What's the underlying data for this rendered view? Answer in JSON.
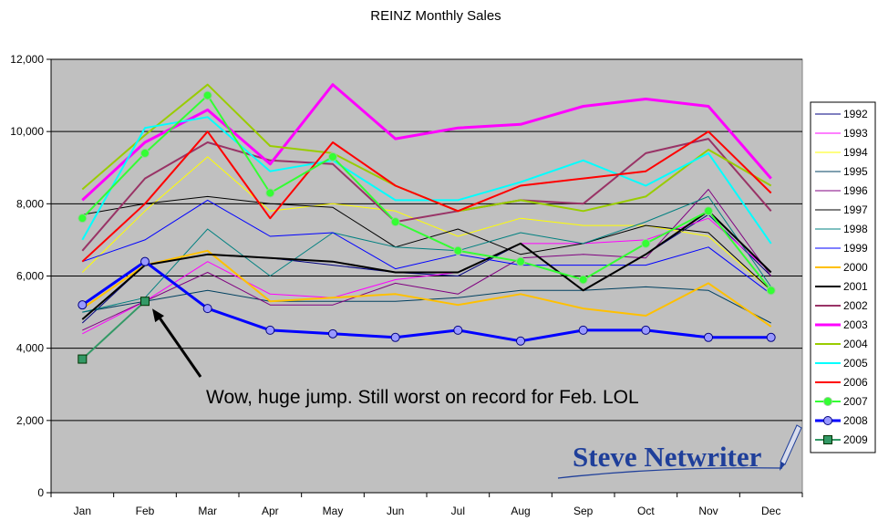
{
  "chart_data": {
    "type": "line",
    "title": "REINZ Monthly Sales",
    "xlabel": "",
    "ylabel": "",
    "categories": [
      "Jan",
      "Feb",
      "Mar",
      "Apr",
      "May",
      "Jun",
      "Jul",
      "Aug",
      "Sep",
      "Oct",
      "Nov",
      "Dec"
    ],
    "ylim": [
      0,
      12000
    ],
    "yticks": [
      0,
      2000,
      4000,
      6000,
      8000,
      10000,
      12000
    ],
    "ytick_labels": [
      "0",
      "2,000",
      "4,000",
      "6,000",
      "8,000",
      "10,000",
      "12,000"
    ],
    "grid": true,
    "legend": "right",
    "plot_background": "#c0c0c0",
    "series": [
      {
        "name": "1992",
        "color": "#000080",
        "width": 1,
        "marker": "none",
        "values": [
          4700,
          6300,
          6600,
          6500,
          6300,
          6100,
          6000,
          6900,
          5600,
          6600,
          7700,
          6000
        ]
      },
      {
        "name": "1993",
        "color": "#ff00ff",
        "width": 1,
        "marker": "none",
        "values": [
          4400,
          5300,
          6400,
          5500,
          5400,
          5900,
          6100,
          6900,
          6900,
          7000,
          7600,
          6100
        ]
      },
      {
        "name": "1994",
        "color": "#ffff00",
        "width": 1,
        "marker": "none",
        "values": [
          6100,
          7800,
          9300,
          7800,
          8000,
          7800,
          7100,
          7600,
          7400,
          7400,
          7100,
          5600
        ]
      },
      {
        "name": "1995",
        "color": "#004060",
        "width": 1,
        "marker": "none",
        "values": [
          5000,
          5300,
          5600,
          5300,
          5300,
          5300,
          5400,
          5600,
          5600,
          5700,
          5600,
          4700
        ]
      },
      {
        "name": "1996",
        "color": "#800080",
        "width": 1,
        "marker": "none",
        "values": [
          4500,
          5300,
          6100,
          5200,
          5200,
          5800,
          5500,
          6500,
          6600,
          6500,
          8400,
          6000
        ]
      },
      {
        "name": "1997",
        "color": "#000000",
        "width": 1,
        "marker": "none",
        "values": [
          7700,
          8000,
          8200,
          8000,
          7900,
          6800,
          7300,
          6600,
          6900,
          7400,
          7200,
          5600
        ]
      },
      {
        "name": "1998",
        "color": "#008080",
        "width": 1,
        "marker": "none",
        "values": [
          5000,
          5400,
          7300,
          6000,
          7200,
          6800,
          6700,
          7200,
          6900,
          7500,
          8200,
          5700
        ]
      },
      {
        "name": "1999",
        "color": "#0000ff",
        "width": 1,
        "marker": "none",
        "values": [
          6400,
          7000,
          8100,
          7100,
          7200,
          6200,
          6600,
          6300,
          6300,
          6300,
          6800,
          5500
        ]
      },
      {
        "name": "2000",
        "color": "#ffc000",
        "width": 2,
        "marker": "none",
        "values": [
          5100,
          6300,
          6700,
          5300,
          5400,
          5500,
          5200,
          5500,
          5100,
          4900,
          5800,
          4600
        ]
      },
      {
        "name": "2001",
        "color": "#000000",
        "width": 2,
        "marker": "none",
        "values": [
          4800,
          6300,
          6600,
          6500,
          6400,
          6100,
          6100,
          6900,
          5600,
          6600,
          7800,
          6100
        ]
      },
      {
        "name": "2002",
        "color": "#993366",
        "width": 2,
        "marker": "none",
        "values": [
          6700,
          8700,
          9700,
          9200,
          9100,
          7500,
          7800,
          8100,
          8000,
          9400,
          9800,
          7800
        ]
      },
      {
        "name": "2003",
        "color": "#ff00ff",
        "width": 3,
        "marker": "none",
        "values": [
          8100,
          9700,
          10600,
          9100,
          11300,
          9800,
          10100,
          10200,
          10700,
          10900,
          10700,
          8700
        ]
      },
      {
        "name": "2004",
        "color": "#99cc00",
        "width": 2,
        "marker": "none",
        "values": [
          8400,
          9900,
          11300,
          9600,
          9400,
          8500,
          7800,
          8100,
          7800,
          8200,
          9500,
          8500
        ]
      },
      {
        "name": "2005",
        "color": "#00ffff",
        "width": 2,
        "marker": "none",
        "values": [
          7000,
          10100,
          10400,
          8900,
          9200,
          8100,
          8100,
          8600,
          9200,
          8500,
          9400,
          6900
        ]
      },
      {
        "name": "2006",
        "color": "#ff0000",
        "width": 2,
        "marker": "none",
        "values": [
          6400,
          8000,
          10000,
          7600,
          9700,
          8500,
          7800,
          8500,
          8700,
          8900,
          10000,
          8300
        ]
      },
      {
        "name": "2007",
        "color": "#33ff33",
        "width": 2,
        "marker": "star",
        "values": [
          7600,
          9400,
          11000,
          8300,
          9300,
          7500,
          6700,
          6400,
          5900,
          6900,
          7800,
          5600
        ]
      },
      {
        "name": "2008",
        "color": "#0000ff",
        "width": 3,
        "marker": "circle",
        "values": [
          5200,
          6400,
          5100,
          4500,
          4400,
          4300,
          4500,
          4200,
          4500,
          4500,
          4300,
          4300
        ]
      },
      {
        "name": "2009",
        "color": "#339966",
        "width": 2,
        "marker": "square",
        "values": [
          3700,
          5300,
          null,
          null,
          null,
          null,
          null,
          null,
          null,
          null,
          null,
          null
        ]
      }
    ],
    "annotation": {
      "text": "Wow, huge jump. Still worst on record for Feb. LOL",
      "points_to": {
        "category": "Feb",
        "value": 5300
      }
    }
  },
  "watermark": {
    "text": "Steve Netwriter"
  }
}
